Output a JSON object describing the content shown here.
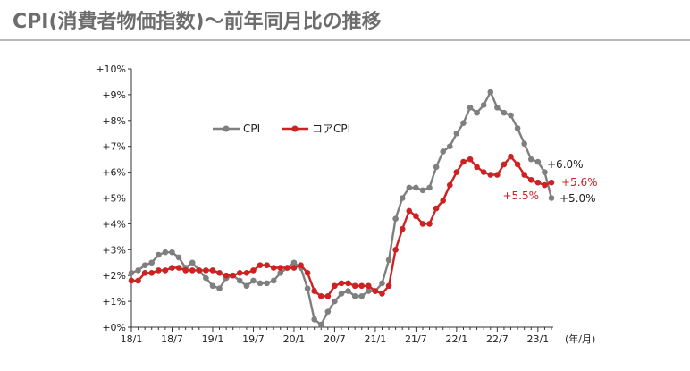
{
  "title": "CPI(消費者物価指数)〜前年同月比の推移",
  "chart_data": {
    "type": "line",
    "x_unit_label": "(年/月)",
    "x_tick_labels": [
      "18/1",
      "18/7",
      "19/1",
      "19/7",
      "20/1",
      "20/7",
      "21/1",
      "21/7",
      "22/1",
      "22/7",
      "23/1"
    ],
    "y_tick_labels": [
      "+0%",
      "+1%",
      "+2%",
      "+3%",
      "+4%",
      "+5%",
      "+6%",
      "+7%",
      "+8%",
      "+9%",
      "+10%"
    ],
    "ylim": [
      0,
      10
    ],
    "grid": false,
    "legend_position": "upper-left inside plot",
    "series": [
      {
        "name": "CPI",
        "color": "#7f7f7f",
        "values": [
          2.1,
          2.2,
          2.4,
          2.5,
          2.8,
          2.9,
          2.9,
          2.7,
          2.3,
          2.5,
          2.2,
          1.9,
          1.6,
          1.5,
          1.9,
          2.0,
          1.8,
          1.6,
          1.8,
          1.7,
          1.7,
          1.8,
          2.1,
          2.3,
          2.5,
          2.3,
          1.5,
          0.3,
          0.1,
          0.6,
          1.0,
          1.3,
          1.4,
          1.2,
          1.2,
          1.4,
          1.4,
          1.7,
          2.6,
          4.2,
          5.0,
          5.4,
          5.4,
          5.3,
          5.4,
          6.2,
          6.8,
          7.0,
          7.5,
          7.9,
          8.5,
          8.3,
          8.6,
          9.1,
          8.5,
          8.3,
          8.2,
          7.7,
          7.1,
          6.5,
          6.4,
          6.0,
          5.0
        ]
      },
      {
        "name": "コアCPI",
        "color": "#cc2222",
        "values": [
          1.8,
          1.8,
          2.1,
          2.1,
          2.2,
          2.2,
          2.3,
          2.3,
          2.2,
          2.2,
          2.2,
          2.2,
          2.2,
          2.1,
          2.0,
          2.0,
          2.1,
          2.1,
          2.2,
          2.4,
          2.4,
          2.3,
          2.3,
          2.3,
          2.3,
          2.4,
          2.1,
          1.4,
          1.2,
          1.2,
          1.6,
          1.7,
          1.7,
          1.6,
          1.6,
          1.6,
          1.4,
          1.3,
          1.6,
          3.0,
          3.8,
          4.5,
          4.3,
          4.0,
          4.0,
          4.6,
          4.9,
          5.5,
          6.0,
          6.4,
          6.5,
          6.2,
          6.0,
          5.9,
          5.9,
          6.3,
          6.6,
          6.3,
          5.9,
          5.7,
          5.6,
          5.5,
          5.6
        ]
      }
    ],
    "annotations": [
      {
        "text": "+6.0%",
        "series": "CPI"
      },
      {
        "text": "+5.0%",
        "series": "CPI"
      },
      {
        "text": "+5.6%",
        "series": "コアCPI"
      },
      {
        "text": "+5.5%",
        "series": "コアCPI"
      }
    ]
  }
}
